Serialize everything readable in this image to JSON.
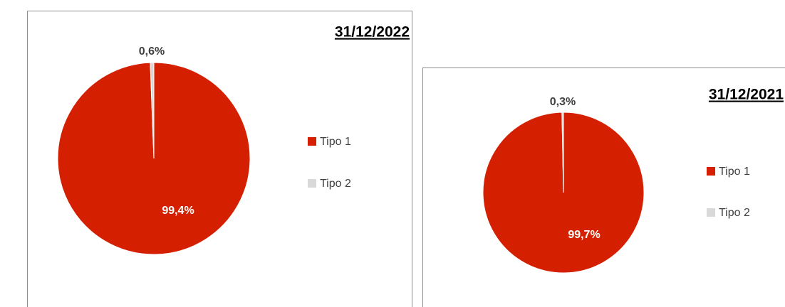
{
  "chart_data": [
    {
      "type": "pie",
      "title": "31/12/2022",
      "categories": [
        "Tipo 1",
        "Tipo 2"
      ],
      "values": [
        99.4,
        0.6
      ],
      "value_labels": [
        "99,4%",
        "0,6%"
      ],
      "colors": [
        "#d42000",
        "#d9d9d9"
      ],
      "legend": "right"
    },
    {
      "type": "pie",
      "title": "31/12/2021",
      "categories": [
        "Tipo 1",
        "Tipo 2"
      ],
      "values": [
        99.7,
        0.3
      ],
      "value_labels": [
        "99,7%",
        "0,3%"
      ],
      "colors": [
        "#d42000",
        "#d9d9d9"
      ],
      "legend": "right"
    }
  ]
}
